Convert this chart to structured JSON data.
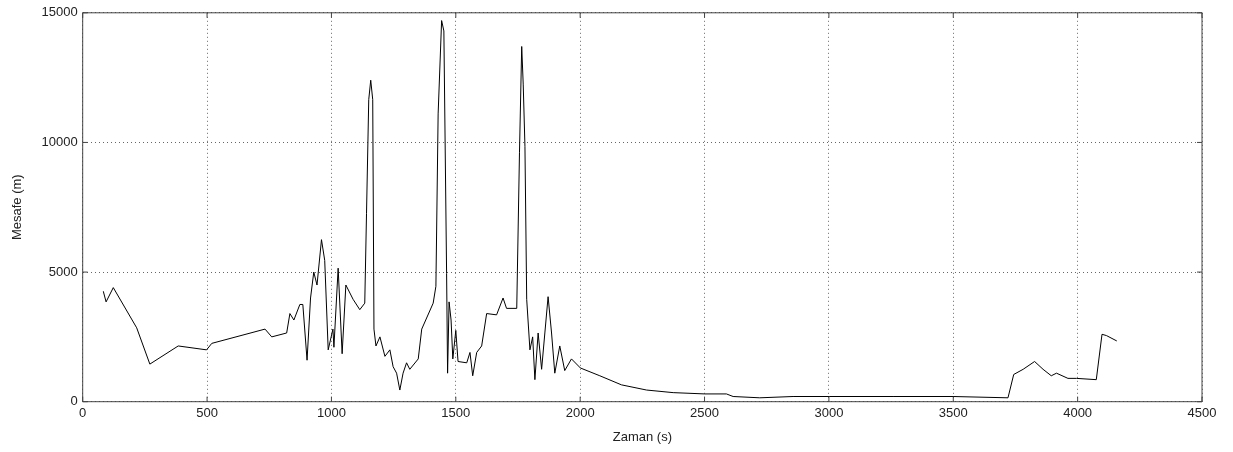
{
  "chart_data": {
    "type": "line",
    "xlabel": "Zaman (s)",
    "ylabel": "Mesafe (m)",
    "x": [
      83,
      94,
      123,
      217,
      270,
      384,
      498,
      519,
      733,
      760,
      820,
      833,
      849,
      873,
      885,
      902,
      916,
      929,
      942,
      960,
      973,
      987,
      1006,
      1010,
      1027,
      1043,
      1058,
      1087,
      1114,
      1134,
      1141,
      1150,
      1158,
      1166,
      1171,
      1179,
      1195,
      1215,
      1235,
      1248,
      1262,
      1275,
      1288,
      1302,
      1315,
      1349,
      1363,
      1409,
      1420,
      1429,
      1443,
      1452,
      1463,
      1467,
      1473,
      1481,
      1488,
      1500,
      1509,
      1544,
      1557,
      1568,
      1584,
      1604,
      1624,
      1664,
      1690,
      1704,
      1745,
      1756,
      1765,
      1771,
      1778,
      1785,
      1798,
      1809,
      1818,
      1831,
      1845,
      1858,
      1871,
      1885,
      1898,
      1918,
      1938,
      1965,
      2001,
      2079,
      2166,
      2267,
      2374,
      2501,
      2588,
      2615,
      2722,
      2856,
      3001,
      3258,
      3499,
      3720,
      3743,
      3781,
      3827,
      3861,
      3894,
      3915,
      3961,
      3995,
      4075,
      4098,
      4116,
      4156
    ],
    "values": [
      4250,
      3850,
      4400,
      2850,
      1450,
      2150,
      2000,
      2250,
      2800,
      2500,
      2650,
      3400,
      3150,
      3750,
      3750,
      1600,
      4000,
      5000,
      4500,
      6250,
      5450,
      2000,
      2800,
      2100,
      5150,
      1850,
      4500,
      3950,
      3550,
      3800,
      7250,
      11650,
      12400,
      11650,
      2800,
      2150,
      2500,
      1750,
      2000,
      1350,
      1100,
      450,
      1100,
      1500,
      1250,
      1650,
      2800,
      3800,
      4450,
      11100,
      14700,
      14300,
      4950,
      1100,
      3850,
      3150,
      1650,
      2750,
      1550,
      1500,
      1900,
      1000,
      1900,
      2150,
      3400,
      3350,
      4000,
      3600,
      3600,
      9600,
      13700,
      12250,
      9850,
      3950,
      2000,
      2500,
      850,
      2650,
      1250,
      2650,
      4050,
      2650,
      1100,
      2150,
      1200,
      1650,
      1300,
      1000,
      650,
      450,
      350,
      300,
      300,
      200,
      150,
      200,
      200,
      200,
      200,
      150,
      1050,
      1250,
      1550,
      1250,
      1000,
      1100,
      900,
      900,
      850,
      2600,
      2550,
      2350
    ],
    "color": "#000000",
    "xlim": [
      0,
      4500
    ],
    "xticks": [
      0,
      500,
      1000,
      1500,
      2000,
      2500,
      3000,
      3500,
      4000,
      4500
    ],
    "ylim": [
      0,
      15000
    ],
    "yticks": [
      0,
      5000,
      10000,
      15000
    ],
    "grid": true,
    "marker": "none",
    "line_style": "solid"
  }
}
